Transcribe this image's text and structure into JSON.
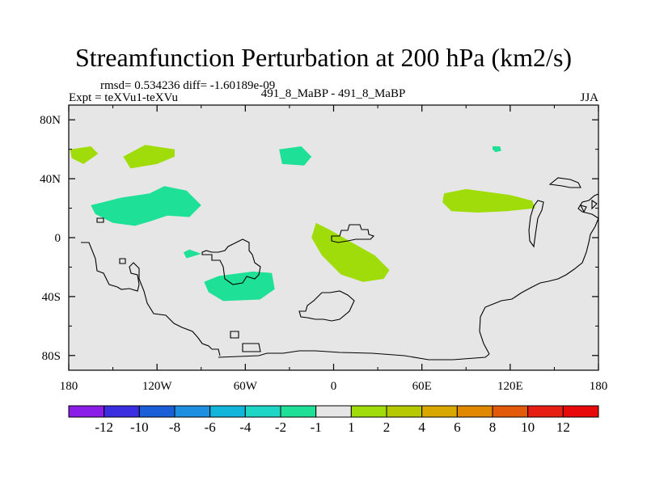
{
  "chart_data": {
    "type": "contour-map",
    "title": "Streamfunction Perturbation at 200 hPa (km2/s)",
    "subtitle_stats": "rmsd= 0.534236 diff= -1.60189e-09",
    "left_label": "Expt = teXVu1-teXVu",
    "center_label": "491_8_MaBP - 491_8_MaBP",
    "right_label": "JJA",
    "x_ticks": [
      {
        "value": -180,
        "label": "180"
      },
      {
        "value": -120,
        "label": "120W"
      },
      {
        "value": -60,
        "label": "60W"
      },
      {
        "value": 0,
        "label": "0"
      },
      {
        "value": 60,
        "label": "60E"
      },
      {
        "value": 120,
        "label": "120E"
      },
      {
        "value": 180,
        "label": "180"
      }
    ],
    "y_ticks": [
      {
        "value": 80,
        "label": "80N"
      },
      {
        "value": 40,
        "label": "40N"
      },
      {
        "value": 0,
        "label": "0"
      },
      {
        "value": -40,
        "label": "40S"
      },
      {
        "value": -80,
        "label": "80S"
      }
    ],
    "xlim": [
      -180,
      180
    ],
    "ylim": [
      -90,
      90
    ],
    "colorbar": {
      "labels": [
        "-12",
        "-10",
        "-8",
        "-6",
        "-4",
        "-2",
        "-1",
        "1",
        "2",
        "4",
        "6",
        "8",
        "10",
        "12"
      ],
      "colors": [
        "#8a1ee8",
        "#3a2ee0",
        "#1a5fd8",
        "#1e8ee0",
        "#12b6da",
        "#1ed6c6",
        "#1ee096",
        "#e6e6e6",
        "#a0dc0a",
        "#b6c800",
        "#d8a800",
        "#e08800",
        "#e25a0a",
        "#e61e14",
        "#e80a0a"
      ]
    },
    "regions": [
      {
        "name": "anomaly-positive-1",
        "level": "1 to 2",
        "color": "#a0dc0a",
        "points": [
          [
            -179,
            60
          ],
          [
            -165,
            62
          ],
          [
            -160,
            57
          ],
          [
            -170,
            50
          ],
          [
            -178,
            54
          ]
        ]
      },
      {
        "name": "anomaly-positive-2",
        "level": "1 to 2",
        "color": "#a0dc0a",
        "points": [
          [
            -143,
            55
          ],
          [
            -128,
            63
          ],
          [
            -108,
            60
          ],
          [
            -108,
            55
          ],
          [
            -120,
            50
          ],
          [
            -138,
            47
          ]
        ]
      },
      {
        "name": "anomaly-negative-1",
        "level": "-2 to -1",
        "color": "#1ee096",
        "points": [
          [
            -37,
            60
          ],
          [
            -22,
            62
          ],
          [
            -15,
            55
          ],
          [
            -20,
            49
          ],
          [
            -35,
            50
          ]
        ]
      },
      {
        "name": "anomaly-negative-2",
        "level": "-2 to -1",
        "color": "#1ee096",
        "points": [
          [
            -165,
            22
          ],
          [
            -145,
            27
          ],
          [
            -125,
            30
          ],
          [
            -115,
            35
          ],
          [
            -100,
            32
          ],
          [
            -90,
            22
          ],
          [
            -98,
            14
          ],
          [
            -113,
            15
          ],
          [
            -125,
            11
          ],
          [
            -135,
            8
          ],
          [
            -150,
            10
          ],
          [
            -162,
            16
          ]
        ]
      },
      {
        "name": "anomaly-negative-3",
        "level": "-2 to -1",
        "color": "#1ee096",
        "points": [
          [
            -102,
            -10
          ],
          [
            -98,
            -8
          ],
          [
            -90,
            -11
          ],
          [
            -100,
            -14
          ]
        ]
      },
      {
        "name": "anomaly-negative-4",
        "level": "-2 to -1",
        "color": "#1ee096",
        "points": [
          [
            -88,
            -30
          ],
          [
            -78,
            -26
          ],
          [
            -55,
            -23
          ],
          [
            -42,
            -24
          ],
          [
            -40,
            -35
          ],
          [
            -50,
            -42
          ],
          [
            -75,
            -43
          ],
          [
            -85,
            -37
          ]
        ]
      },
      {
        "name": "anomaly-positive-3",
        "level": "1 to 2",
        "color": "#a0dc0a",
        "points": [
          [
            -12,
            10
          ],
          [
            -2,
            5
          ],
          [
            12,
            -3
          ],
          [
            28,
            -12
          ],
          [
            38,
            -22
          ],
          [
            34,
            -28
          ],
          [
            20,
            -30
          ],
          [
            5,
            -25
          ],
          [
            -8,
            -12
          ],
          [
            -15,
            0
          ]
        ]
      },
      {
        "name": "anomaly-positive-4",
        "level": "1 to 2",
        "color": "#a0dc0a",
        "points": [
          [
            75,
            30
          ],
          [
            90,
            33
          ],
          [
            120,
            29
          ],
          [
            135,
            25
          ],
          [
            137,
            20
          ],
          [
            118,
            18
          ],
          [
            98,
            17
          ],
          [
            80,
            18
          ],
          [
            74,
            24
          ]
        ]
      },
      {
        "name": "anomaly-negative-5",
        "level": "-2 to -1",
        "color": "#1ee096",
        "points": [
          [
            108,
            62
          ],
          [
            113,
            62
          ],
          [
            114,
            59
          ],
          [
            110,
            58
          ],
          [
            108,
            60
          ]
        ]
      }
    ]
  }
}
